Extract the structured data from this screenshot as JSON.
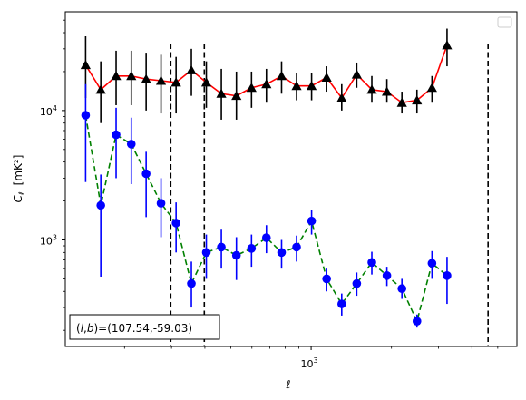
{
  "chart_data": {
    "type": "scatter",
    "xscale": "log",
    "yscale": "log",
    "xlim": [
      120,
      5900
    ],
    "ylim": [
      150,
      58000
    ],
    "xlabel": "ℓ",
    "ylabel_main": "C",
    "ylabel_sub": "ℓ",
    "ylabel_unit": "[mK²]",
    "x_ticks": [
      {
        "value": 1000,
        "base": "10",
        "exp": "3"
      }
    ],
    "y_ticks": [
      {
        "value": 1000,
        "base": "10",
        "exp": "3"
      },
      {
        "value": 10000,
        "base": "10",
        "exp": "4"
      }
    ],
    "vlines": [
      298,
      398,
      4600
    ],
    "annotation": "(l, b)=(107.54,-59.03)",
    "annotation_parts": {
      "l": "l",
      "comma": ",",
      "b": "b",
      "value": ")=(107.54,-59.03)"
    },
    "legend": {
      "placement": "upper right",
      "entries": []
    },
    "series": [
      {
        "style": "triangle-solid",
        "color": "#000000",
        "line_color": "#ff0000",
        "points": [
          {
            "x": 143,
            "y": 22500,
            "lo": 12500,
            "hi": 37500
          },
          {
            "x": 163,
            "y": 14500,
            "lo": 8000,
            "hi": 24000
          },
          {
            "x": 186,
            "y": 18500,
            "lo": 11000,
            "hi": 29000
          },
          {
            "x": 212,
            "y": 18500,
            "lo": 11000,
            "hi": 29000
          },
          {
            "x": 241,
            "y": 17500,
            "lo": 10000,
            "hi": 28000
          },
          {
            "x": 274,
            "y": 17000,
            "lo": 9500,
            "hi": 27000
          },
          {
            "x": 312,
            "y": 16500,
            "lo": 9500,
            "hi": 26000
          },
          {
            "x": 356,
            "y": 20500,
            "lo": 13000,
            "hi": 30000
          },
          {
            "x": 405,
            "y": 16500,
            "lo": 10500,
            "hi": 24000
          },
          {
            "x": 461,
            "y": 13500,
            "lo": 8500,
            "hi": 21000
          },
          {
            "x": 525,
            "y": 13000,
            "lo": 8500,
            "hi": 20000
          },
          {
            "x": 598,
            "y": 15000,
            "lo": 10500,
            "hi": 20000
          },
          {
            "x": 680,
            "y": 16000,
            "lo": 11500,
            "hi": 21000
          },
          {
            "x": 775,
            "y": 18500,
            "lo": 13500,
            "hi": 24000
          },
          {
            "x": 882,
            "y": 15500,
            "lo": 12000,
            "hi": 19500
          },
          {
            "x": 1004,
            "y": 15500,
            "lo": 12000,
            "hi": 19500
          },
          {
            "x": 1143,
            "y": 18000,
            "lo": 14000,
            "hi": 22000
          },
          {
            "x": 1302,
            "y": 12500,
            "lo": 10000,
            "hi": 16000
          },
          {
            "x": 1482,
            "y": 19000,
            "lo": 15000,
            "hi": 23500
          },
          {
            "x": 1688,
            "y": 14500,
            "lo": 11500,
            "hi": 18500
          },
          {
            "x": 1922,
            "y": 14000,
            "lo": 11500,
            "hi": 17500
          },
          {
            "x": 2188,
            "y": 11500,
            "lo": 9500,
            "hi": 14000
          },
          {
            "x": 2491,
            "y": 12000,
            "lo": 9500,
            "hi": 14500
          },
          {
            "x": 2836,
            "y": 15000,
            "lo": 11500,
            "hi": 18500
          },
          {
            "x": 3229,
            "y": 32000,
            "lo": 22000,
            "hi": 43000
          }
        ]
      },
      {
        "style": "circle-dashed",
        "color": "#0000ff",
        "line_color": "#008000",
        "points": [
          {
            "x": 143,
            "y": 9200,
            "lo": 2800,
            "hi": 16000
          },
          {
            "x": 163,
            "y": 1850,
            "lo": 520,
            "hi": 3200
          },
          {
            "x": 186,
            "y": 6500,
            "lo": 3000,
            "hi": 10500
          },
          {
            "x": 212,
            "y": 5500,
            "lo": 2700,
            "hi": 8800
          },
          {
            "x": 241,
            "y": 3250,
            "lo": 1500,
            "hi": 4800
          },
          {
            "x": 274,
            "y": 1920,
            "lo": 1050,
            "hi": 3000
          },
          {
            "x": 312,
            "y": 1350,
            "lo": 800,
            "hi": 1950
          },
          {
            "x": 356,
            "y": 460,
            "lo": 300,
            "hi": 680
          },
          {
            "x": 405,
            "y": 800,
            "lo": 500,
            "hi": 1100
          },
          {
            "x": 461,
            "y": 880,
            "lo": 600,
            "hi": 1200
          },
          {
            "x": 525,
            "y": 760,
            "lo": 490,
            "hi": 1050
          },
          {
            "x": 598,
            "y": 860,
            "lo": 620,
            "hi": 1100
          },
          {
            "x": 680,
            "y": 1040,
            "lo": 790,
            "hi": 1300
          },
          {
            "x": 775,
            "y": 800,
            "lo": 600,
            "hi": 1000
          },
          {
            "x": 882,
            "y": 880,
            "lo": 680,
            "hi": 1080
          },
          {
            "x": 1004,
            "y": 1400,
            "lo": 1100,
            "hi": 1700
          },
          {
            "x": 1143,
            "y": 500,
            "lo": 400,
            "hi": 600
          },
          {
            "x": 1302,
            "y": 320,
            "lo": 260,
            "hi": 385
          },
          {
            "x": 1482,
            "y": 460,
            "lo": 370,
            "hi": 560
          },
          {
            "x": 1688,
            "y": 670,
            "lo": 540,
            "hi": 810
          },
          {
            "x": 1922,
            "y": 530,
            "lo": 440,
            "hi": 620
          },
          {
            "x": 2188,
            "y": 420,
            "lo": 350,
            "hi": 500
          },
          {
            "x": 2491,
            "y": 235,
            "lo": 210,
            "hi": 265
          },
          {
            "x": 2836,
            "y": 660,
            "lo": 500,
            "hi": 820
          },
          {
            "x": 3229,
            "y": 530,
            "lo": 320,
            "hi": 740
          }
        ]
      }
    ]
  }
}
